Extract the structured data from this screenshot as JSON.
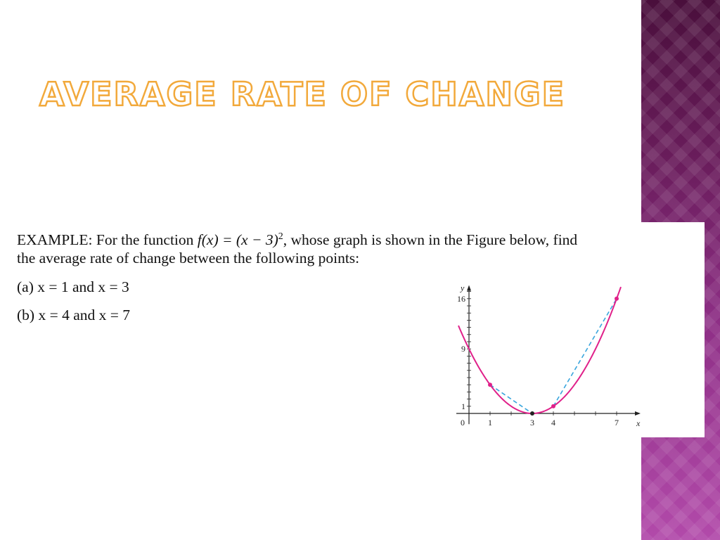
{
  "slide": {
    "title": "Average Rate of Change"
  },
  "example": {
    "label": "EXAMPLE:",
    "line1_before": "For the function ",
    "function": "f(x) = (x − 3)",
    "exponent": "2",
    "line1_after": ", whose graph is shown in the Figure below, find",
    "line2": "the average rate of change between the following points:",
    "item_a": "(a)   x = 1 and x = 3",
    "item_b": "(b)   x = 4 and x = 7"
  },
  "chart_data": {
    "type": "line",
    "function": "f(x) = (x − 3)^2",
    "xlabel": "x",
    "ylabel": "y",
    "x_ticks": [
      "1",
      "3",
      "4",
      "7"
    ],
    "y_ticks": [
      "1",
      "9",
      "16"
    ],
    "origin_label": "0",
    "xlim": [
      -0.7,
      8
    ],
    "ylim": [
      -1.5,
      17.5
    ],
    "curve_x_range": [
      -0.5,
      7.2
    ],
    "points": [
      {
        "x": 1,
        "y": 4
      },
      {
        "x": 3,
        "y": 0
      },
      {
        "x": 4,
        "y": 1
      },
      {
        "x": 7,
        "y": 16
      }
    ],
    "secants": [
      {
        "from": [
          1,
          4
        ],
        "to": [
          3,
          0
        ]
      },
      {
        "from": [
          4,
          1
        ],
        "to": [
          7,
          16
        ]
      }
    ],
    "curve_color": "#e0218a",
    "secant_color": "#3aa6dd"
  }
}
